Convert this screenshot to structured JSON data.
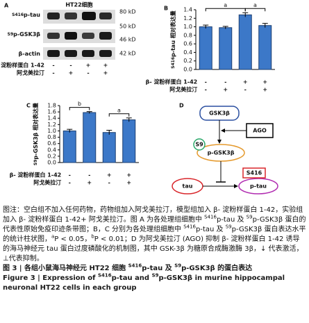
{
  "panel_a": {
    "label": "A",
    "title": "HT22细胞",
    "rows": [
      [
        {
          "sup": "S416"
        },
        "p-tau"
      ],
      [
        {
          "sup": "S9"
        },
        "p-GSK3β"
      ],
      [
        "β-actin"
      ]
    ],
    "markers": [
      "80 kD",
      "50 kD",
      "46 kD",
      "42 kD"
    ],
    "conditions": [
      {
        "name": "β- 淀粉样蛋白 1-42",
        "signs": [
          "-",
          "-",
          "+",
          "+"
        ]
      },
      {
        "name": "阿戈美拉汀",
        "signs": [
          "-",
          "+",
          "-",
          "+"
        ]
      }
    ]
  },
  "chart_data": [
    {
      "type": "bar",
      "label": "B",
      "y_label": [
        {
          "sup": "S416"
        },
        "p-tau 相对表达量"
      ],
      "values": [
        1.0,
        0.98,
        1.28,
        1.03
      ],
      "errors": [
        0.04,
        0.03,
        0.05,
        0.05
      ],
      "color": "#3c78c8",
      "ylim": [
        0,
        1.4
      ],
      "yticks": [
        {
          "value": 0,
          "label": "0.0"
        },
        0.2,
        0.4,
        0.6,
        0.8,
        {
          "value": 1,
          "label": "1.0"
        },
        1.2,
        1.4
      ],
      "significance": [
        {
          "from": 0,
          "to": 2,
          "label": "a"
        },
        {
          "from": 2,
          "to": 3,
          "label": "a"
        }
      ],
      "conditions": [
        {
          "name": "β- 淀粉样蛋白 1-42",
          "signs": [
            "-",
            "-",
            "+",
            "+"
          ]
        },
        {
          "name": "阿戈美拉汀",
          "signs": [
            "-",
            "+",
            "-",
            "+"
          ]
        }
      ]
    },
    {
      "type": "bar",
      "label": "C",
      "y_label": [
        {
          "sup": "S9"
        },
        "p-GSK3β 相对表达量"
      ],
      "values": [
        1.0,
        1.58,
        0.95,
        1.35
      ],
      "errors": [
        0.05,
        0.03,
        0.07,
        0.06
      ],
      "color": "#3c78c8",
      "ylim": [
        0,
        1.8
      ],
      "yticks": [
        {
          "value": 0,
          "label": "0.0"
        },
        0.2,
        0.4,
        0.6,
        0.8,
        {
          "value": 1,
          "label": "1.0"
        },
        1.2,
        1.4,
        1.6,
        1.8
      ],
      "significance": [
        {
          "from": 0,
          "to": 1,
          "label": "b"
        },
        {
          "from": 2,
          "to": 3,
          "label": "a"
        }
      ],
      "conditions": [
        {
          "name": "β- 淀粉样蛋白 1-42",
          "signs": [
            "-",
            "-",
            "+",
            "+"
          ]
        },
        {
          "name": "阿戈美拉汀",
          "signs": [
            "-",
            "+",
            "-",
            "+"
          ]
        }
      ]
    }
  ],
  "panel_d": {
    "label": "D",
    "nodes": {
      "gsk3b": "GSK3β",
      "ago": "AGO",
      "s9": "S9",
      "p_gsk3b": "p-GSK3β",
      "s416": "S416",
      "tau": "tau",
      "p_tau": "p-tau"
    }
  },
  "caption": {
    "note": [
      "图注：空白组不加入任何药物，药物组加入阿戈美拉汀，模型组加入 β- 淀粉样蛋白 1-42，实验组加入 β- 淀粉样蛋白 1-42+ 阿戈美拉汀。图 A 为各处理组细胞中 ",
      {
        "sup": "S416"
      },
      "p-tau 及 ",
      {
        "sup": "S9"
      },
      "p-GSK3β 蛋白的代表性原始免疫印迹条带图；B，C 分别为各处理组细胞中 ",
      {
        "sup": "S416"
      },
      "p-tau 及 ",
      {
        "sup": "S9"
      },
      "p-GSK3β 蛋白表达水平的统计柱状图，",
      {
        "sup": "a"
      },
      "P < 0.05，",
      {
        "sup": "b"
      },
      "P < 0.01；D 为阿戈美拉汀 (AGO) 抑制 β- 淀粉样蛋白 1-42 诱导的海马神经元 tau 蛋白过度磷酸化的机制图，其中 GSK-3β 为糖原合成酶激酶 3β，↓ 代表激活，⊥代表抑制。"
    ],
    "title_cn": [
      "图 3 | 各组小鼠海马神经元 HT22 细胞 ",
      {
        "sup": "S416"
      },
      "p-tau 及 ",
      {
        "sup": "S9"
      },
      "p-GSK3β 的蛋白表达"
    ],
    "title_en": [
      "Figure 3 | Expression of ",
      {
        "sup": "S416"
      },
      "p-tau and ",
      {
        "sup": "S9"
      },
      "p-GSK3β in murine hippocampal neuronal HT22 cells in each group"
    ]
  }
}
